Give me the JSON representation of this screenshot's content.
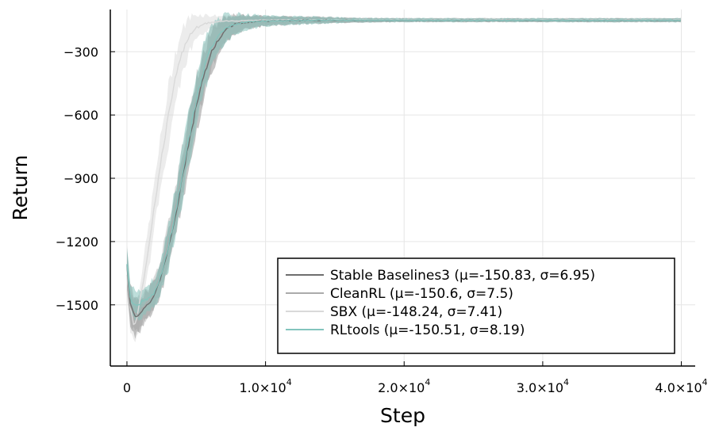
{
  "chart_data": {
    "type": "line",
    "xlabel": "Step",
    "ylabel": "Return",
    "xlim": [
      -1200,
      41000
    ],
    "ylim": [
      -1790,
      -100
    ],
    "x_ticks": [
      {
        "value": 0,
        "label": "0"
      },
      {
        "value": 10000,
        "label": "1.0×10",
        "exp": "4"
      },
      {
        "value": 20000,
        "label": "2.0×10",
        "exp": "4"
      },
      {
        "value": 30000,
        "label": "3.0×10",
        "exp": "4"
      },
      {
        "value": 40000,
        "label": "4.0×10",
        "exp": "4"
      }
    ],
    "y_ticks": [
      {
        "value": -300,
        "label": "−300"
      },
      {
        "value": -600,
        "label": "−600"
      },
      {
        "value": -900,
        "label": "−900"
      },
      {
        "value": -1200,
        "label": "−1200"
      },
      {
        "value": -1500,
        "label": "−1500"
      }
    ],
    "grid": true,
    "legend_position": "bottom-right",
    "series": [
      {
        "name": "Stable Baselines3 (μ=-150.83, σ=6.95)",
        "color": "#6e6e6e",
        "band_color": "#8c8c8c",
        "x": [
          0,
          200,
          500,
          800,
          1200,
          1600,
          2000,
          2500,
          3000,
          3500,
          4000,
          4500,
          5000,
          5500,
          6000,
          6500,
          7000,
          7500,
          8000,
          9000,
          10000,
          11000,
          12000,
          13000,
          14000,
          15000,
          16000,
          18000,
          20000,
          25000,
          30000,
          35000,
          40000
        ],
        "y": [
          -1310,
          -1480,
          -1550,
          -1560,
          -1520,
          -1490,
          -1450,
          -1360,
          -1230,
          -1080,
          -900,
          -720,
          -560,
          -420,
          -320,
          -250,
          -205,
          -180,
          -165,
          -158,
          -155,
          -153,
          -152,
          -151,
          -151,
          -151,
          -150.83,
          -150.83,
          -150.83,
          -150.83,
          -150.83,
          -150.83,
          -150.83
        ],
        "spread": [
          90,
          80,
          80,
          70,
          60,
          60,
          60,
          70,
          80,
          90,
          100,
          110,
          110,
          100,
          90,
          70,
          55,
          45,
          35,
          25,
          20,
          18,
          16,
          15,
          14,
          12,
          10,
          8,
          7,
          7,
          7,
          7,
          7
        ]
      },
      {
        "name": "CleanRL (μ=-150.6, σ=7.5)",
        "color": "#ababab",
        "band_color": "#b8b8b8",
        "x": [
          0,
          200,
          500,
          800,
          1200,
          1600,
          2000,
          2500,
          3000,
          3500,
          4000,
          4500,
          5000,
          5500,
          6000,
          6500,
          7000,
          7500,
          8000,
          9000,
          10000,
          11000,
          12000,
          13000,
          14000,
          15000,
          16000,
          18000,
          20000,
          25000,
          30000,
          35000,
          40000
        ],
        "y": [
          -1320,
          -1490,
          -1540,
          -1550,
          -1510,
          -1480,
          -1440,
          -1340,
          -1200,
          -1040,
          -860,
          -690,
          -530,
          -400,
          -305,
          -240,
          -200,
          -178,
          -164,
          -157,
          -154,
          -152,
          -151,
          -151,
          -151,
          -150.6,
          -150.6,
          -150.6,
          -150.6,
          -150.6,
          -150.6,
          -150.6,
          -150.6
        ],
        "spread": [
          80,
          80,
          70,
          70,
          60,
          60,
          60,
          70,
          80,
          90,
          100,
          100,
          100,
          95,
          85,
          70,
          55,
          45,
          35,
          25,
          20,
          18,
          16,
          15,
          14,
          12,
          10,
          8,
          8,
          8,
          8,
          8,
          8
        ]
      },
      {
        "name": "SBX (μ=-148.24, σ=7.41)",
        "color": "#d9d9d9",
        "band_color": "#d5d5d5",
        "x": [
          0,
          200,
          500,
          800,
          1200,
          1600,
          2000,
          2500,
          3000,
          3500,
          4000,
          4500,
          5000,
          5500,
          6000,
          7000,
          8000,
          9000,
          10000,
          12000,
          14000,
          16000,
          18000,
          20000,
          25000,
          30000,
          35000,
          40000
        ],
        "y": [
          -1350,
          -1500,
          -1600,
          -1540,
          -1380,
          -1210,
          -1020,
          -800,
          -600,
          -430,
          -300,
          -220,
          -185,
          -170,
          -162,
          -156,
          -153,
          -151,
          -150,
          -149,
          -148.5,
          -148.24,
          -148.24,
          -148.24,
          -148.24,
          -148.24,
          -148.24,
          -148.24
        ],
        "spread": [
          90,
          90,
          80,
          80,
          80,
          90,
          100,
          110,
          120,
          110,
          95,
          75,
          55,
          40,
          30,
          22,
          18,
          16,
          14,
          12,
          10,
          9,
          8,
          7,
          7,
          7,
          7,
          7
        ]
      },
      {
        "name": "RLtools (μ=-150.51, σ=8.19)",
        "color": "#83c4bd",
        "band_color": "#86c3bc",
        "x": [
          0,
          200,
          500,
          800,
          1200,
          1600,
          2000,
          2500,
          3000,
          3500,
          4000,
          4500,
          5000,
          5500,
          6000,
          6500,
          7000,
          7500,
          8000,
          9000,
          10000,
          11000,
          12000,
          13000,
          14000,
          15000,
          16000,
          18000,
          20000,
          25000,
          30000,
          35000,
          40000
        ],
        "y": [
          -1300,
          -1460,
          -1500,
          -1500,
          -1480,
          -1470,
          -1440,
          -1350,
          -1220,
          -1060,
          -880,
          -700,
          -530,
          -390,
          -295,
          -235,
          -198,
          -178,
          -165,
          -158,
          -155,
          -153,
          -152,
          -151,
          -151,
          -150.5,
          -150.5,
          -150.5,
          -150.5,
          -150.5,
          -150.5,
          -150.5,
          -150.5
        ],
        "spread": [
          80,
          70,
          60,
          60,
          60,
          60,
          60,
          70,
          90,
          100,
          110,
          110,
          110,
          100,
          90,
          75,
          60,
          48,
          38,
          28,
          22,
          20,
          18,
          16,
          14,
          12,
          10,
          9,
          8,
          8,
          8,
          8,
          8
        ]
      }
    ]
  }
}
